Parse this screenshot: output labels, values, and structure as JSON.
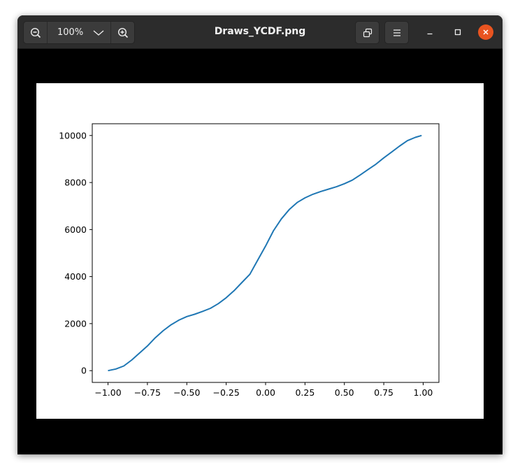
{
  "window": {
    "title": "Draws_YCDF.png"
  },
  "toolbar": {
    "zoom_level": "100%",
    "zoom_out_icon": "zoom-out-icon",
    "zoom_in_icon": "zoom-in-icon",
    "dropdown_icon": "chevron-down-icon",
    "fit_icon": "restore-icon",
    "menu_icon": "hamburger-menu-icon"
  },
  "window_controls": {
    "minimize_icon": "minimize-icon",
    "maximize_icon": "maximize-icon",
    "close_icon": "close-icon",
    "close_color": "#e95420"
  },
  "chart_data": {
    "type": "line",
    "title": "",
    "xlabel": "",
    "ylabel": "",
    "xlim": [
      -1.1,
      1.1
    ],
    "ylim": [
      -500,
      10500
    ],
    "xticks": [
      -1.0,
      -0.75,
      -0.5,
      -0.25,
      0.0,
      0.25,
      0.5,
      0.75,
      1.0
    ],
    "xtick_labels": [
      "−1.00",
      "−0.75",
      "−0.50",
      "−0.25",
      "0.00",
      "0.25",
      "0.50",
      "0.75",
      "1.00"
    ],
    "yticks": [
      0,
      2000,
      4000,
      6000,
      8000,
      10000
    ],
    "ytick_labels": [
      "0",
      "2000",
      "4000",
      "6000",
      "8000",
      "10000"
    ],
    "grid": false,
    "legend": false,
    "series": [
      {
        "color": "#1f77b4",
        "x": [
          -1.0,
          -0.95,
          -0.9,
          -0.85,
          -0.8,
          -0.75,
          -0.7,
          -0.65,
          -0.6,
          -0.55,
          -0.5,
          -0.45,
          -0.4,
          -0.35,
          -0.3,
          -0.25,
          -0.2,
          -0.15,
          -0.1,
          -0.05,
          0.0,
          0.05,
          0.1,
          0.15,
          0.2,
          0.25,
          0.3,
          0.35,
          0.4,
          0.45,
          0.5,
          0.55,
          0.6,
          0.65,
          0.7,
          0.75,
          0.8,
          0.85,
          0.9,
          0.95,
          0.99
        ],
        "y": [
          0,
          70,
          200,
          450,
          750,
          1050,
          1400,
          1700,
          1950,
          2150,
          2300,
          2400,
          2520,
          2650,
          2850,
          3100,
          3400,
          3750,
          4100,
          4700,
          5300,
          5950,
          6450,
          6850,
          7150,
          7350,
          7500,
          7620,
          7720,
          7820,
          7950,
          8100,
          8320,
          8550,
          8780,
          9050,
          9300,
          9550,
          9780,
          9920,
          10000
        ]
      }
    ]
  }
}
